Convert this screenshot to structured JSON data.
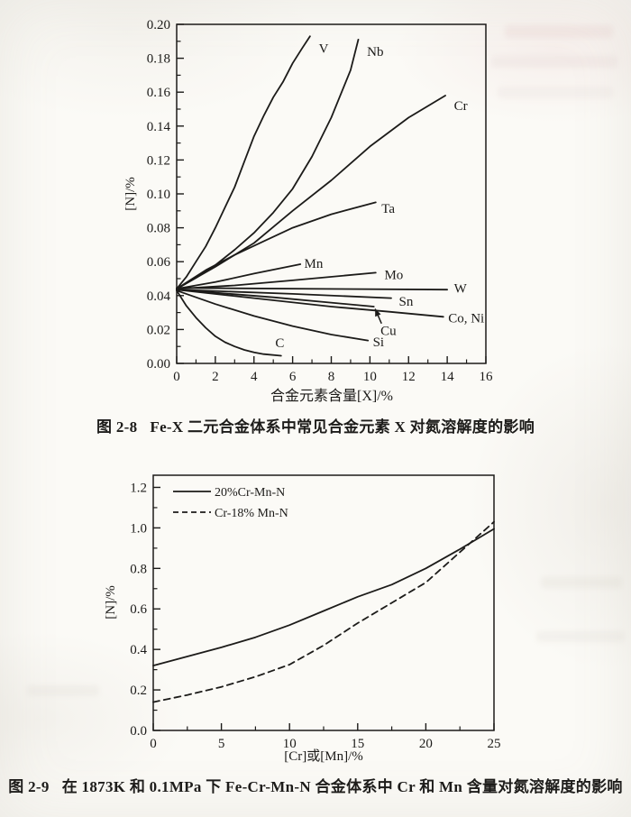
{
  "page": {
    "paper_color": "#fbfaf6",
    "ink_color": "#1c1b19"
  },
  "figure1": {
    "label": "图 2-8",
    "text": "Fe-X 二元合金体系中常见合金元素 X 对氮溶解度的影响"
  },
  "figure2": {
    "label": "图 2-9",
    "text": "在 1873K 和 0.1MPa 下 Fe-Cr-Mn-N 合金体系中 Cr 和 Mn 含量对氮溶解度的影响"
  },
  "chart_data": [
    {
      "type": "line",
      "title": "",
      "xlabel": "合金元素含量[X]/%",
      "ylabel": "[N]/%",
      "xlim": [
        0,
        16
      ],
      "ylim": [
        0,
        0.2
      ],
      "grid": false,
      "legend_position": "none",
      "xticks": [
        [
          0,
          "0"
        ],
        [
          2,
          "2"
        ],
        [
          4,
          "4"
        ],
        [
          6,
          "6"
        ],
        [
          8,
          "8"
        ],
        [
          10,
          "10"
        ],
        [
          12,
          "12"
        ],
        [
          14,
          "14"
        ],
        [
          16,
          "16"
        ]
      ],
      "xminor": [
        1,
        3,
        5,
        7,
        9,
        11,
        13,
        15
      ],
      "yticks": [
        [
          0,
          "0.00"
        ],
        [
          0.02,
          "0.02"
        ],
        [
          0.04,
          "0.04"
        ],
        [
          0.06,
          "0.06"
        ],
        [
          0.08,
          "0.08"
        ],
        [
          0.1,
          "0.10"
        ],
        [
          0.12,
          "0.12"
        ],
        [
          0.14,
          "0.14"
        ],
        [
          0.16,
          "0.16"
        ],
        [
          0.18,
          "0.18"
        ],
        [
          0.2,
          "0.20"
        ]
      ],
      "yminor": [
        0.01,
        0.03,
        0.05,
        0.07,
        0.09,
        0.11,
        0.13,
        0.15,
        0.17,
        0.19
      ],
      "series": [
        {
          "name": "V",
          "x": [
            0,
            0.5,
            1,
            1.5,
            2,
            2.5,
            3,
            3.5,
            4,
            4.5,
            5,
            5.5,
            6,
            6.5,
            6.9
          ],
          "y": [
            0.044,
            0.051,
            0.06,
            0.069,
            0.08,
            0.092,
            0.104,
            0.119,
            0.134,
            0.146,
            0.157,
            0.166,
            0.177,
            0.186,
            0.193
          ],
          "label": {
            "text": "V",
            "x": 7.35,
            "y": 0.186
          }
        },
        {
          "name": "Nb",
          "x": [
            0,
            1,
            2,
            3,
            4,
            5,
            6,
            7,
            8,
            9,
            9.4
          ],
          "y": [
            0.044,
            0.0505,
            0.058,
            0.067,
            0.077,
            0.089,
            0.103,
            0.122,
            0.145,
            0.173,
            0.191
          ],
          "label": {
            "text": "Nb",
            "x": 9.85,
            "y": 0.184
          }
        },
        {
          "name": "Cr",
          "x": [
            0,
            2,
            4,
            6,
            8,
            10,
            12,
            13.9
          ],
          "y": [
            0.044,
            0.057,
            0.071,
            0.09,
            0.108,
            0.128,
            0.145,
            0.158
          ],
          "label": {
            "text": "Cr",
            "x": 14.35,
            "y": 0.152
          }
        },
        {
          "name": "Ta",
          "x": [
            0,
            1.5,
            3,
            4.5,
            6,
            8,
            10.3
          ],
          "y": [
            0.044,
            0.055,
            0.064,
            0.072,
            0.08,
            0.088,
            0.095
          ],
          "label": {
            "text": "Ta",
            "x": 10.6,
            "y": 0.0915
          }
        },
        {
          "name": "Mn",
          "x": [
            0,
            2,
            4,
            6.4
          ],
          "y": [
            0.044,
            0.048,
            0.053,
            0.0585
          ],
          "label": {
            "text": "Mn",
            "x": 6.6,
            "y": 0.059
          }
        },
        {
          "name": "Mo",
          "x": [
            0,
            3,
            6,
            10.3
          ],
          "y": [
            0.044,
            0.046,
            0.049,
            0.0535
          ],
          "label": {
            "text": "Mo",
            "x": 10.75,
            "y": 0.0525
          }
        },
        {
          "name": "W",
          "x": [
            0,
            14
          ],
          "y": [
            0.0445,
            0.0435
          ],
          "label": {
            "text": "W",
            "x": 14.35,
            "y": 0.0445
          }
        },
        {
          "name": "Sn",
          "x": [
            0,
            6,
            11.1
          ],
          "y": [
            0.0435,
            0.041,
            0.0385
          ],
          "label": {
            "text": "Sn",
            "x": 11.5,
            "y": 0.0368
          }
        },
        {
          "name": "Cu",
          "x": [
            0,
            5,
            10.2
          ],
          "y": [
            0.0435,
            0.039,
            0.0335
          ],
          "label": {
            "text": "Cu",
            "x": 10.55,
            "y": 0.0195
          },
          "arrow": {
            "x1": 10.6,
            "y1": 0.0235,
            "x2": 10.27,
            "y2": 0.0322
          }
        },
        {
          "name": "Co, Ni",
          "x": [
            0,
            4,
            8,
            11,
            13.8
          ],
          "y": [
            0.0435,
            0.0385,
            0.0335,
            0.0305,
            0.0275
          ],
          "label": {
            "text": "Co, Ni",
            "x": 14.05,
            "y": 0.0268
          }
        },
        {
          "name": "Si",
          "x": [
            0,
            2,
            4,
            6,
            8,
            9.9
          ],
          "y": [
            0.043,
            0.035,
            0.028,
            0.022,
            0.017,
            0.0135
          ],
          "label": {
            "text": "Si",
            "x": 10.15,
            "y": 0.0128
          }
        },
        {
          "name": "C",
          "x": [
            0,
            0.5,
            1,
            1.5,
            2,
            2.5,
            3,
            3.5,
            4,
            4.5,
            5.4
          ],
          "y": [
            0.043,
            0.034,
            0.027,
            0.021,
            0.016,
            0.0125,
            0.01,
            0.008,
            0.0065,
            0.0055,
            0.0045
          ],
          "label": {
            "text": "C",
            "x": 5.1,
            "y": 0.0122
          }
        }
      ]
    },
    {
      "type": "line",
      "title": "",
      "xlabel": "[Cr]或[Mn]/%",
      "ylabel": "[N]/%",
      "xlim": [
        0,
        25
      ],
      "ylim": [
        0,
        1.26
      ],
      "grid": false,
      "legend_position": "top-left",
      "xticks": [
        [
          0,
          "0"
        ],
        [
          5,
          "5"
        ],
        [
          10,
          "10"
        ],
        [
          15,
          "15"
        ],
        [
          20,
          "20"
        ],
        [
          25,
          "25"
        ]
      ],
      "xminor": [
        2.5,
        7.5,
        12.5,
        17.5,
        22.5
      ],
      "yticks": [
        [
          0,
          "0.0"
        ],
        [
          0.2,
          "0.2"
        ],
        [
          0.4,
          "0.4"
        ],
        [
          0.6,
          "0.6"
        ],
        [
          0.8,
          "0.8"
        ],
        [
          1.0,
          "1.0"
        ],
        [
          1.2,
          "1.2"
        ]
      ],
      "yminor": [
        0.1,
        0.3,
        0.5,
        0.7,
        0.9,
        1.1
      ],
      "series": [
        {
          "name": "20%Cr-Mn-N",
          "dash": "solid",
          "x": [
            0,
            2.5,
            5,
            7.5,
            10,
            12.5,
            15,
            17.5,
            20,
            22.5,
            25
          ],
          "y": [
            0.32,
            0.365,
            0.41,
            0.46,
            0.52,
            0.59,
            0.66,
            0.72,
            0.8,
            0.895,
            0.995
          ]
        },
        {
          "name": "Cr-18% Mn-N",
          "dash": "dashed",
          "x": [
            0,
            2.5,
            5,
            7.5,
            10,
            12.5,
            15,
            17.5,
            20,
            22.5,
            25
          ],
          "y": [
            0.14,
            0.175,
            0.215,
            0.265,
            0.325,
            0.42,
            0.53,
            0.63,
            0.73,
            0.88,
            1.03
          ]
        }
      ]
    }
  ]
}
